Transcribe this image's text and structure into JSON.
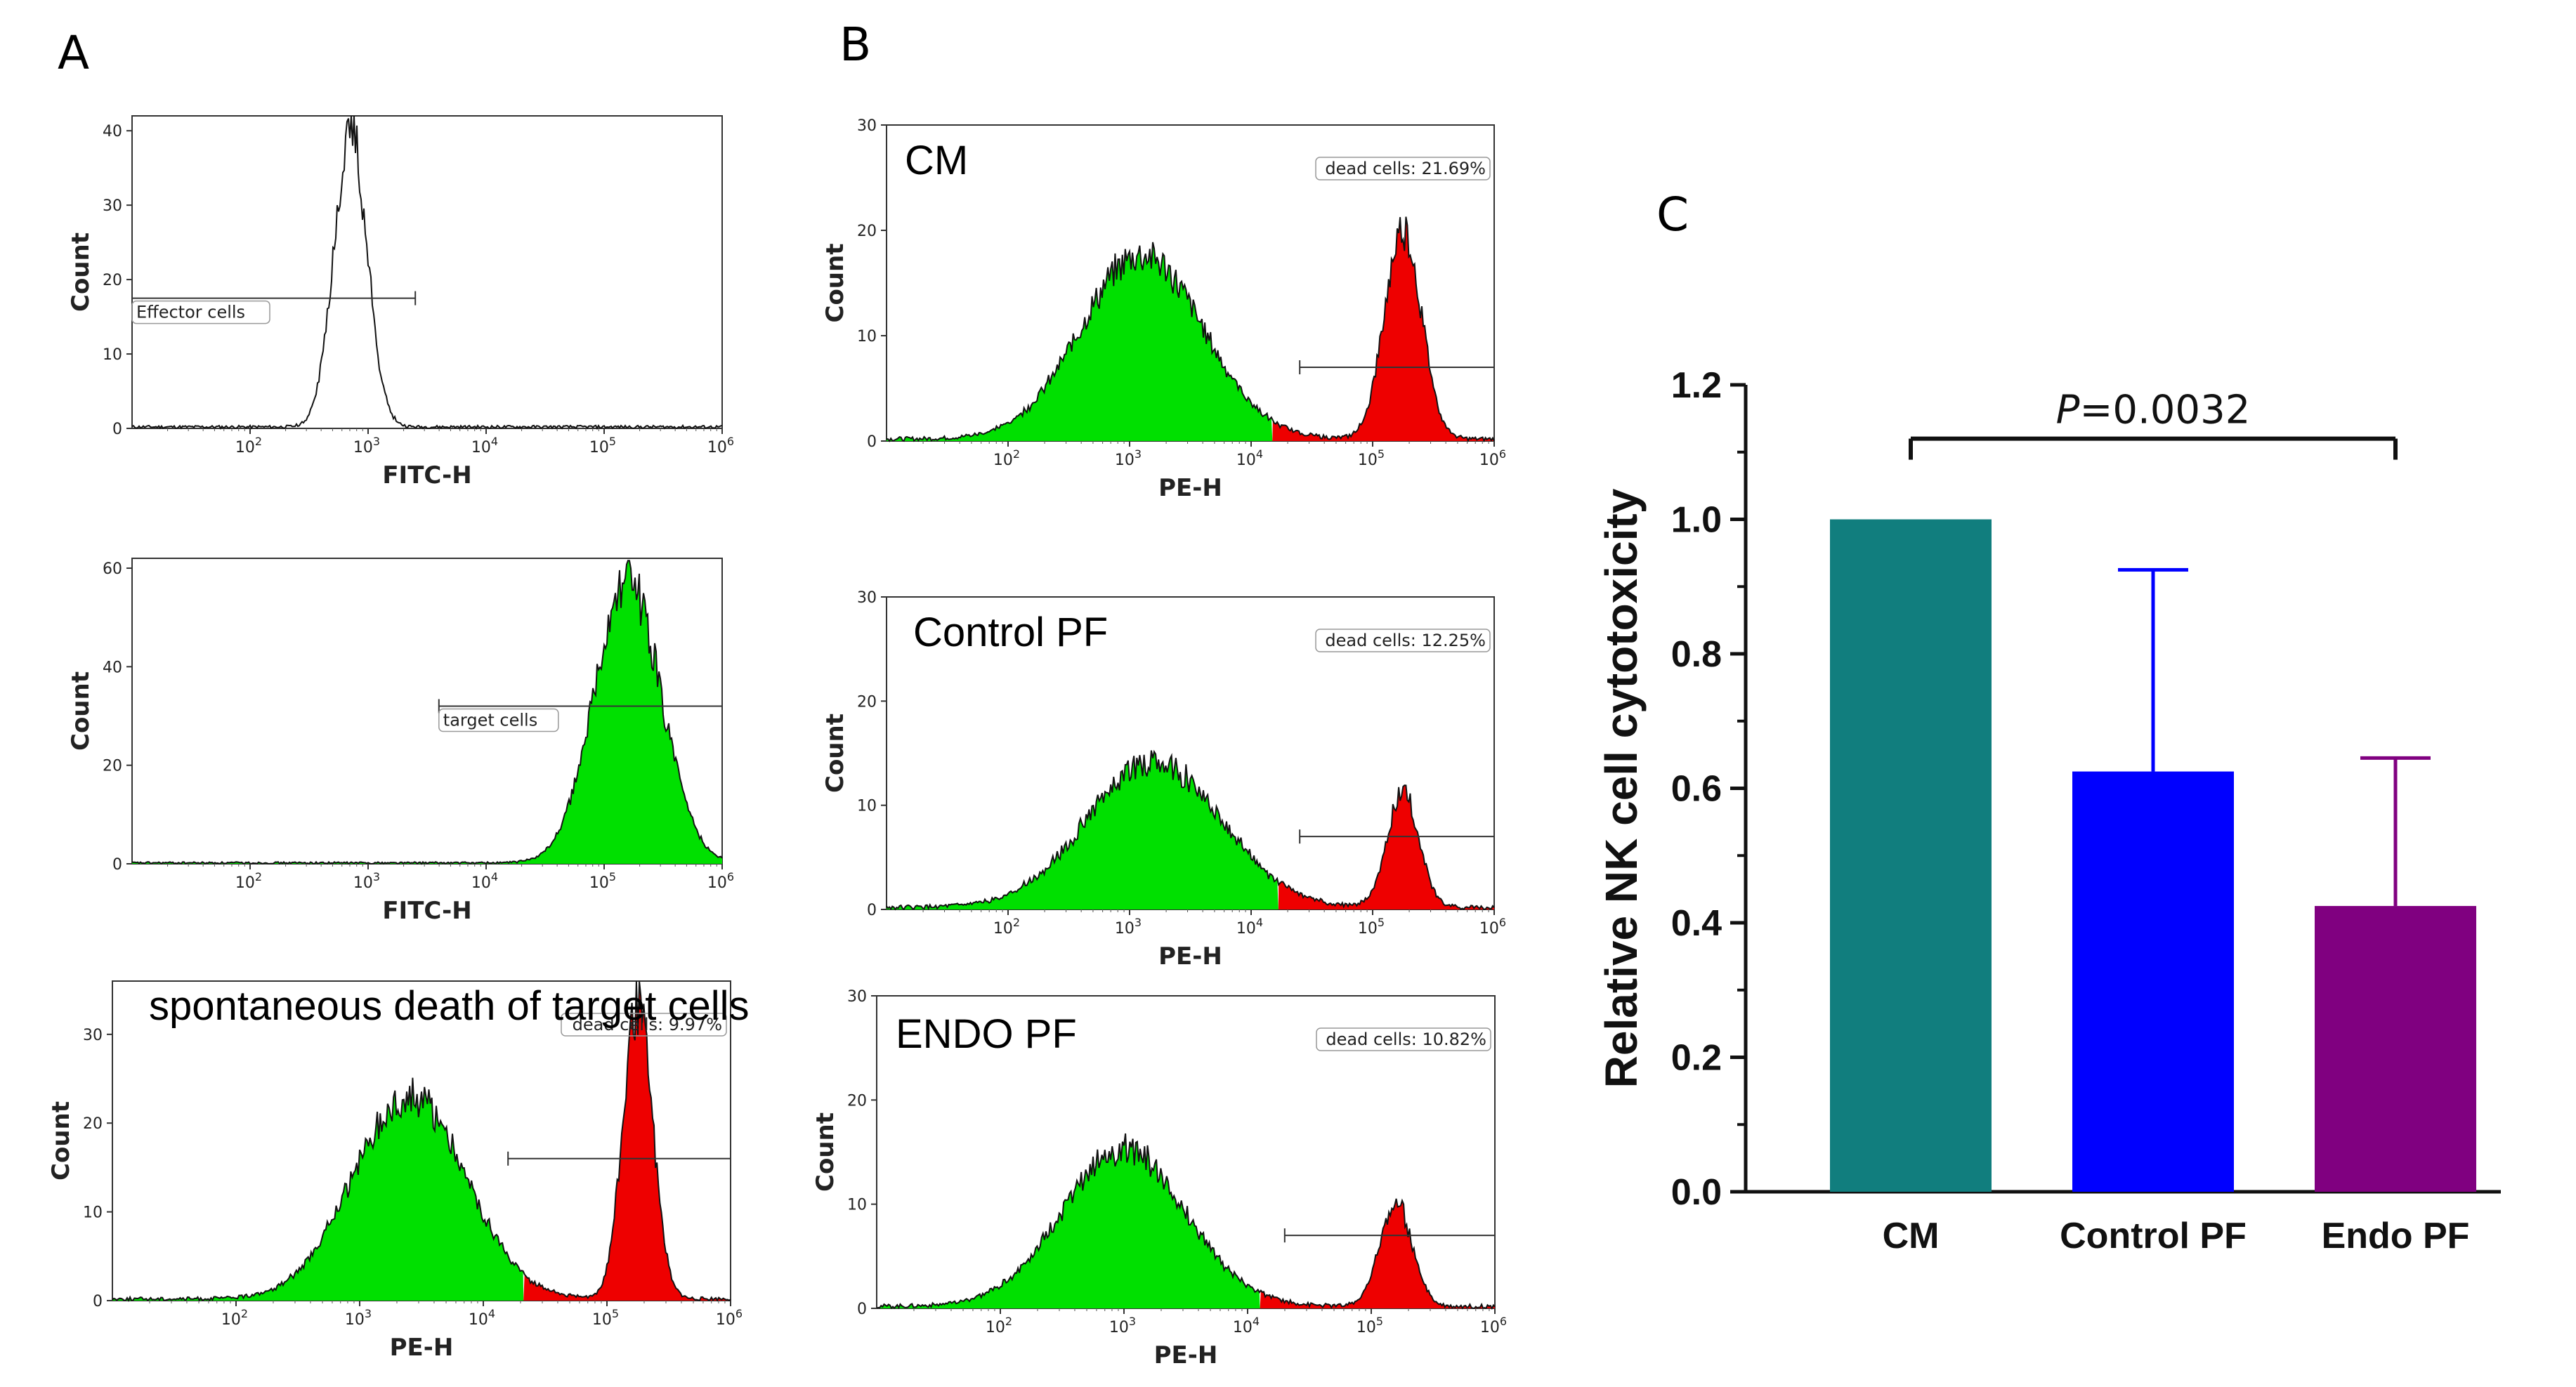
{
  "panel_letters": {
    "a": "A",
    "b": "B",
    "c": "C"
  },
  "flow_common": {
    "count_label": "Count",
    "x_ticks": [
      {
        "base": "10",
        "exp": "2"
      },
      {
        "base": "10",
        "exp": "3"
      },
      {
        "base": "10",
        "exp": "4"
      },
      {
        "base": "10",
        "exp": "5"
      },
      {
        "base": "10",
        "exp": "6"
      }
    ]
  },
  "colors": {
    "live": "#00e000",
    "dead": "#ee0000",
    "cm_bar": "#117e7e",
    "control_bar": "#0000ff",
    "endo_bar": "#800080"
  },
  "chart_data": [
    {
      "type": "area",
      "panel": "A",
      "id": "a1",
      "xlabel": "FITC-H",
      "ylabel": "Count",
      "yticks": [
        "0",
        "10",
        "20",
        "30",
        "40"
      ],
      "ylim": [
        0,
        42
      ],
      "xlim": [
        1,
        6
      ],
      "gates": [
        {
          "label": "Effector cells",
          "from": 1,
          "to": 3.4,
          "y": 17.5
        }
      ],
      "peaks": [
        {
          "center": 2.85,
          "width": 0.14,
          "height": 40,
          "color": "white"
        }
      ],
      "overlay_label": ""
    },
    {
      "type": "area",
      "panel": "A",
      "id": "a2",
      "xlabel": "FITC-H",
      "ylabel": "Count",
      "yticks": [
        "0",
        "20",
        "40",
        "60"
      ],
      "ylim": [
        0,
        62
      ],
      "xlim": [
        1,
        6
      ],
      "gates": [
        {
          "label": "target cells",
          "from": 3.6,
          "to": 6,
          "y": 32
        }
      ],
      "peaks": [
        {
          "center": 5.2,
          "width": 0.28,
          "height": 57,
          "color": "live"
        }
      ],
      "overlay_label": ""
    },
    {
      "type": "area",
      "panel": "A",
      "id": "a3",
      "xlabel": "PE-H",
      "ylabel": "Count",
      "yticks": [
        "0",
        "10",
        "20",
        "30"
      ],
      "ylim": [
        0,
        36
      ],
      "xlim": [
        1,
        6
      ],
      "gates": [
        {
          "label": "dead cells: 9.97%",
          "from": 4.2,
          "to": 6,
          "y": 16
        }
      ],
      "peaks": [
        {
          "center": 3.4,
          "width": 0.45,
          "height": 23,
          "color": "live"
        },
        {
          "center": 5.25,
          "width": 0.12,
          "height": 33,
          "color": "dead"
        }
      ],
      "overlay_label": "spontaneous death of target cells"
    },
    {
      "type": "area",
      "panel": "B",
      "id": "b1",
      "xlabel": "PE-H",
      "ylabel": "Count",
      "yticks": [
        "0",
        "10",
        "20",
        "30"
      ],
      "ylim": [
        0,
        30
      ],
      "xlim": [
        1,
        6
      ],
      "gates": [
        {
          "label": "dead cells: 21.69%",
          "from": 4.4,
          "to": 6,
          "y": 7
        }
      ],
      "peaks": [
        {
          "center": 3.1,
          "width": 0.5,
          "height": 17.5,
          "color": "live"
        },
        {
          "center": 5.25,
          "width": 0.15,
          "height": 20,
          "color": "dead"
        }
      ],
      "overlay_label": "CM"
    },
    {
      "type": "area",
      "panel": "B",
      "id": "b2",
      "xlabel": "PE-H",
      "ylabel": "Count",
      "yticks": [
        "0",
        "10",
        "20",
        "30"
      ],
      "ylim": [
        0,
        30
      ],
      "xlim": [
        1,
        6
      ],
      "gates": [
        {
          "label": "dead cells: 12.25%",
          "from": 4.4,
          "to": 6,
          "y": 7
        }
      ],
      "peaks": [
        {
          "center": 3.2,
          "width": 0.55,
          "height": 14,
          "color": "live"
        },
        {
          "center": 5.25,
          "width": 0.13,
          "height": 11,
          "color": "dead"
        }
      ],
      "overlay_label": "Control PF"
    },
    {
      "type": "area",
      "panel": "B",
      "id": "b3",
      "xlabel": "PE-H",
      "ylabel": "Count",
      "yticks": [
        "0",
        "10",
        "20",
        "30"
      ],
      "ylim": [
        0,
        30
      ],
      "xlim": [
        1,
        6
      ],
      "gates": [
        {
          "label": "dead cells: 10.82%",
          "from": 4.3,
          "to": 6,
          "y": 7
        }
      ],
      "peaks": [
        {
          "center": 3.0,
          "width": 0.5,
          "height": 15,
          "color": "live"
        },
        {
          "center": 5.2,
          "width": 0.13,
          "height": 10,
          "color": "dead"
        }
      ],
      "overlay_label": "ENDO PF"
    },
    {
      "type": "bar",
      "panel": "C",
      "id": "c",
      "title": "",
      "xlabel": "",
      "ylabel": "Relative NK cell cytotoxicity",
      "categories": [
        "CM",
        "Control PF",
        "Endo PF"
      ],
      "values": [
        1.0,
        0.625,
        0.425
      ],
      "errors": [
        0,
        0.3,
        0.22
      ],
      "ylim": [
        0,
        1.2
      ],
      "yticks": [
        "0.0",
        "0.2",
        "0.4",
        "0.6",
        "0.8",
        "1.0",
        "1.2"
      ],
      "significance": {
        "p_italic": "P",
        "p_value": "=0.0032",
        "from": "CM",
        "to": "Endo PF"
      }
    }
  ]
}
